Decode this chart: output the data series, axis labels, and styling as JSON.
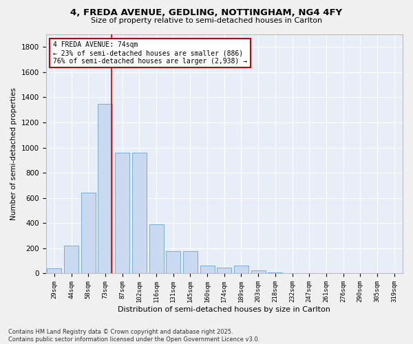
{
  "title_line1": "4, FREDA AVENUE, GEDLING, NOTTINGHAM, NG4 4FY",
  "title_line2": "Size of property relative to semi-detached houses in Carlton",
  "xlabel": "Distribution of semi-detached houses by size in Carlton",
  "ylabel": "Number of semi-detached properties",
  "categories": [
    "29sqm",
    "44sqm",
    "58sqm",
    "73sqm",
    "87sqm",
    "102sqm",
    "116sqm",
    "131sqm",
    "145sqm",
    "160sqm",
    "174sqm",
    "189sqm",
    "203sqm",
    "218sqm",
    "232sqm",
    "247sqm",
    "261sqm",
    "276sqm",
    "290sqm",
    "305sqm",
    "319sqm"
  ],
  "values": [
    40,
    220,
    640,
    1350,
    960,
    960,
    390,
    175,
    175,
    65,
    45,
    65,
    25,
    10,
    5,
    3,
    2,
    2,
    2,
    2,
    2
  ],
  "bar_color": "#c9d9f0",
  "bar_edge_color": "#7aacd6",
  "bar_width": 0.85,
  "property_label": "4 FREDA AVENUE: 74sqm",
  "pct_smaller": "23% of semi-detached houses are smaller (886)",
  "pct_larger": "76% of semi-detached houses are larger (2,938)",
  "annotation_box_color": "#cc0000",
  "vline_color": "#cc0000",
  "vline_x_index": 3.38,
  "ylim": [
    0,
    1900
  ],
  "yticks": [
    0,
    200,
    400,
    600,
    800,
    1000,
    1200,
    1400,
    1600,
    1800
  ],
  "background_color": "#e8eef8",
  "grid_color": "#ffffff",
  "fig_background": "#f0f0f0",
  "footer_line1": "Contains HM Land Registry data © Crown copyright and database right 2025.",
  "footer_line2": "Contains public sector information licensed under the Open Government Licence v3.0."
}
